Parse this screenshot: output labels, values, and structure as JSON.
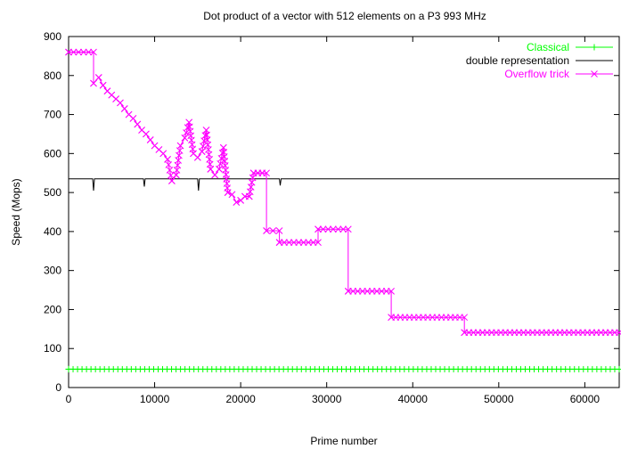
{
  "chart_data": {
    "type": "line",
    "title": "Dot product of a vector with 512 elements on a P3 993 MHz",
    "xlabel": "Prime number",
    "ylabel": "Speed (Mops)",
    "xlim": [
      0,
      64000
    ],
    "ylim": [
      0,
      900
    ],
    "x_ticks": [
      0,
      10000,
      20000,
      30000,
      40000,
      50000,
      60000
    ],
    "y_ticks": [
      0,
      100,
      200,
      300,
      400,
      500,
      600,
      700,
      800,
      900
    ],
    "grid": false,
    "legend_position": "top-right",
    "series": [
      {
        "name": "Classical",
        "color": "#00ff00",
        "marker": "plus",
        "x": [
          0,
          64000
        ],
        "y": [
          47,
          47
        ]
      },
      {
        "name": "double representation",
        "color": "#000000",
        "marker": "none",
        "x": [
          0,
          2800,
          2900,
          3000,
          8700,
          8800,
          8900,
          15000,
          15100,
          15200,
          24500,
          24600,
          24700,
          64000
        ],
        "y": [
          535,
          535,
          505,
          535,
          535,
          515,
          535,
          535,
          505,
          535,
          535,
          518,
          535,
          535
        ]
      },
      {
        "name": "Overflow trick",
        "color": "#ff00ff",
        "marker": "cross",
        "x": [
          0,
          2900,
          2900,
          3500,
          4000,
          4500,
          5000,
          5500,
          6000,
          6500,
          7000,
          7500,
          8000,
          8500,
          9000,
          9500,
          10000,
          10500,
          11000,
          11500,
          12000,
          12500,
          13000,
          13500,
          14000,
          14500,
          15000,
          15500,
          16000,
          16500,
          17000,
          17500,
          18000,
          18500,
          19000,
          19500,
          20000,
          20500,
          21000,
          21500,
          22000,
          22500,
          23000,
          23000,
          24500,
          24500,
          29000,
          29000,
          32500,
          32500,
          37500,
          37500,
          46000,
          46000,
          64000
        ],
        "y": [
          860,
          860,
          780,
          795,
          775,
          760,
          750,
          740,
          730,
          715,
          700,
          690,
          675,
          660,
          650,
          635,
          620,
          610,
          600,
          585,
          530,
          545,
          620,
          640,
          680,
          600,
          590,
          605,
          660,
          560,
          545,
          560,
          615,
          500,
          495,
          475,
          480,
          490,
          490,
          550,
          550,
          550,
          550,
          402,
          402,
          372,
          372,
          406,
          406,
          247,
          247,
          180,
          180,
          141,
          141
        ]
      }
    ]
  }
}
